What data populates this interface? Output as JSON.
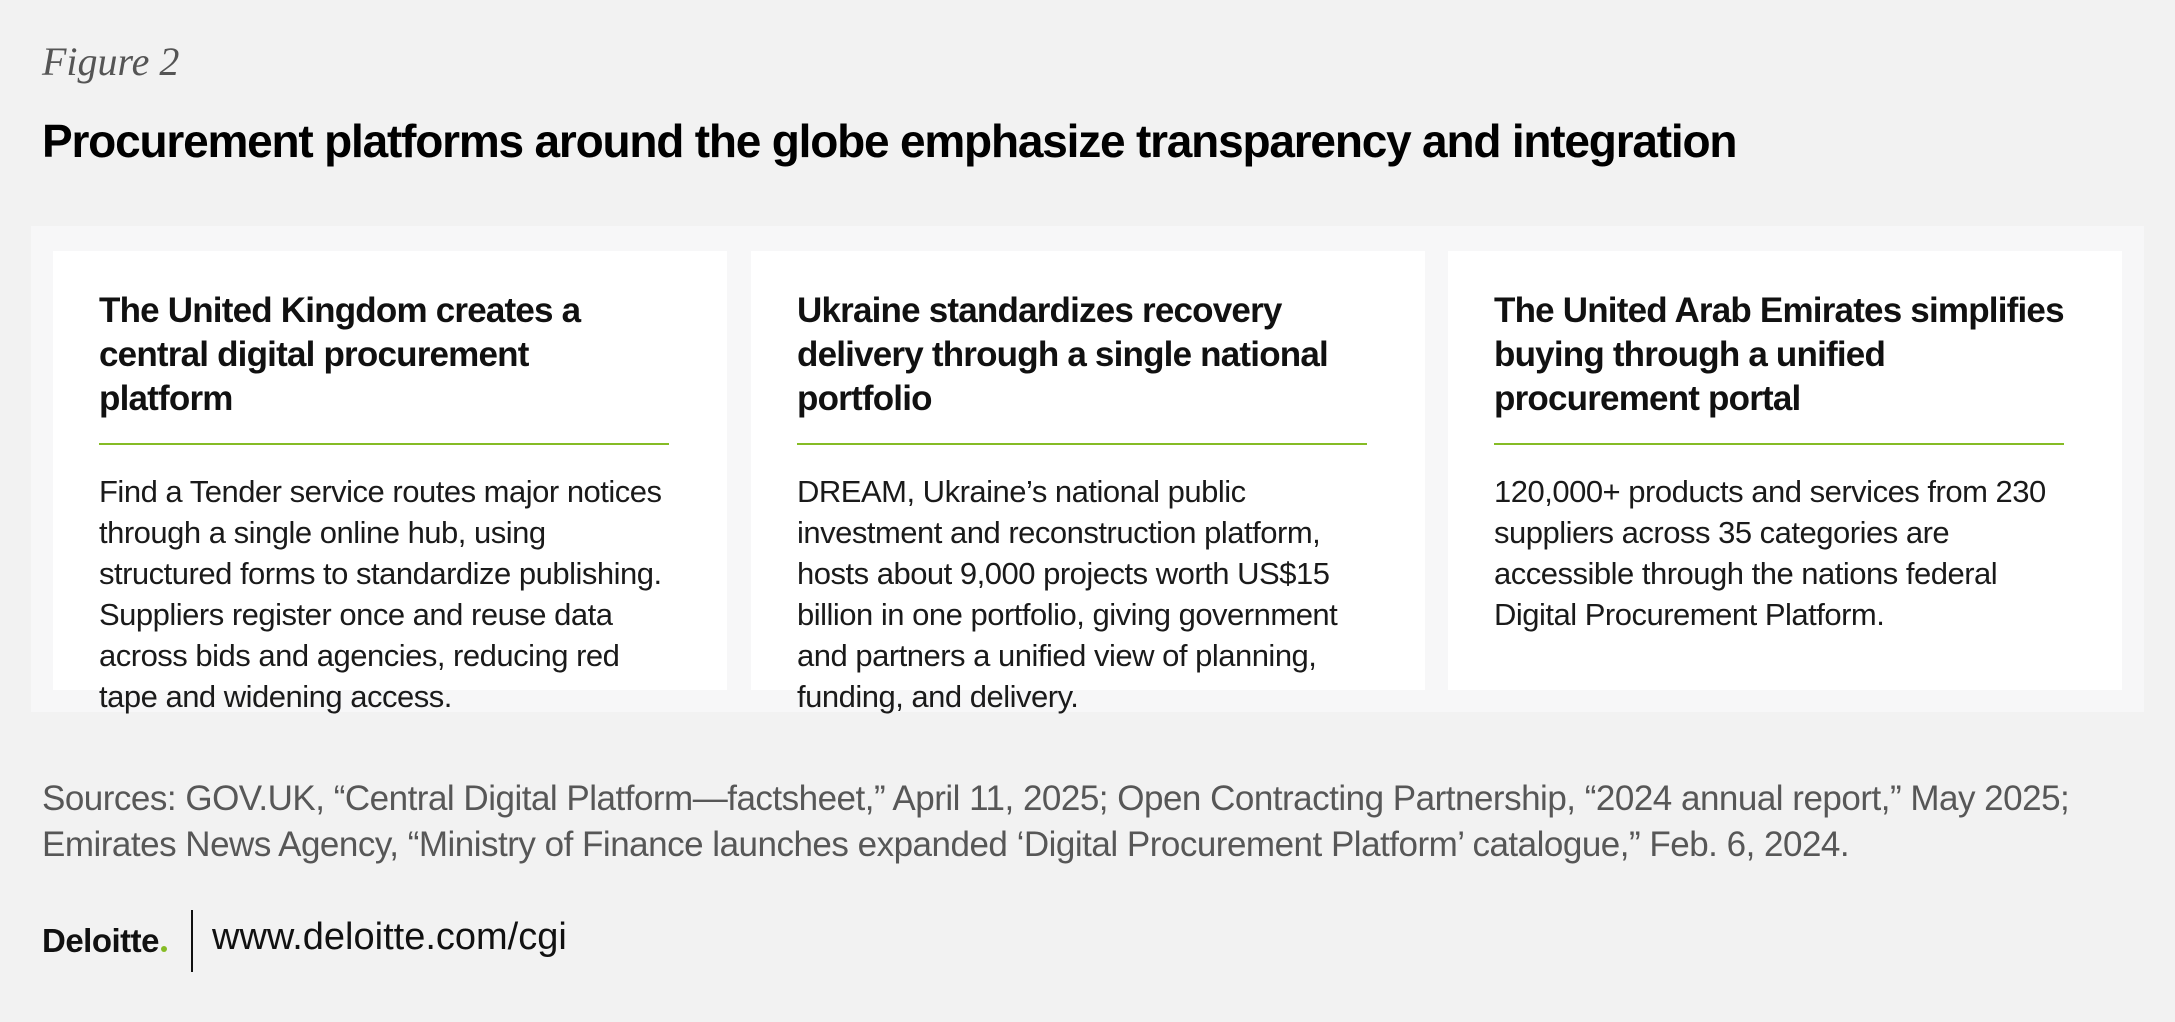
{
  "figure_label": "Figure 2",
  "title": "Procurement platforms around the globe emphasize transparency and integration",
  "cards": [
    {
      "heading": "The United Kingdom creates a central digital procurement platform",
      "body": "Find a Tender service routes major notices through a single online hub, using structured forms to standardize publishing. Suppliers register once and reuse data across bids and agencies, reducing red tape and widening access."
    },
    {
      "heading": "Ukraine standardizes recovery delivery through a single national portfolio",
      "body": "DREAM, Ukraine’s national public investment and reconstruction platform, hosts about 9,000 projects worth US$15 billion in one portfolio, giving government and partners a unified view of planning, funding, and delivery."
    },
    {
      "heading": "The United Arab Emirates simplifies buying through a unified procurement portal",
      "body": "120,000+ products and services from 230 suppliers across 35 categories are accessible through the nations federal Digital Procurement Platform."
    }
  ],
  "sources": "Sources: GOV.UK, “Central Digital Platform—factsheet,” April 11, 2025; Open Contracting Partnership, “2024 annual report,” May 2025; Emirates News Agency, “Ministry of Finance launches expanded ‘Digital Procurement Platform’ catalogue,” Feb. 6, 2024.",
  "footer": {
    "logo": "Deloitte",
    "url": "www.deloitte.com/cgi"
  }
}
